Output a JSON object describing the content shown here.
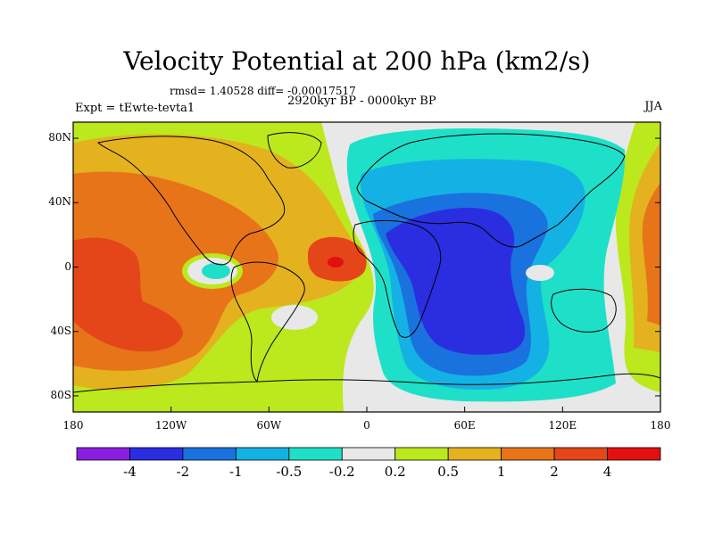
{
  "title": "Velocity Potential at 200 hPa (km2/s)",
  "stats": "rmsd= 1.40528 diff= -0.00017517",
  "left_label": "Expt = tEwte-tevta1",
  "center_label": "2920kyr BP - 0000kyr BP",
  "right_label": "JJA",
  "lat_ticks": [
    {
      "value": 80,
      "label": "80N"
    },
    {
      "value": 40,
      "label": "40N"
    },
    {
      "value": 0,
      "label": "0"
    },
    {
      "value": -40,
      "label": "40S"
    },
    {
      "value": -80,
      "label": "80S"
    }
  ],
  "lon_ticks": [
    {
      "value": -180,
      "label": "180"
    },
    {
      "value": -120,
      "label": "120W"
    },
    {
      "value": -60,
      "label": "60W"
    },
    {
      "value": 0,
      "label": "0"
    },
    {
      "value": 60,
      "label": "60E"
    },
    {
      "value": 120,
      "label": "120E"
    },
    {
      "value": 180,
      "label": "180"
    }
  ],
  "colorbar": {
    "labels": [
      "-4",
      "-2",
      "-1",
      "-0.5",
      "-0.2",
      "0.2",
      "0.5",
      "1",
      "2",
      "4"
    ],
    "colors": [
      "#8a1ee0",
      "#2a2ee0",
      "#1a72de",
      "#14b2e4",
      "#1ee0c8",
      "#e8e8e8",
      "#bce81e",
      "#e4b21e",
      "#e8741a",
      "#e4461a",
      "#e21010"
    ]
  },
  "map": {
    "lon_range": [
      -180,
      180
    ],
    "lat_range": [
      -90,
      90
    ]
  }
}
